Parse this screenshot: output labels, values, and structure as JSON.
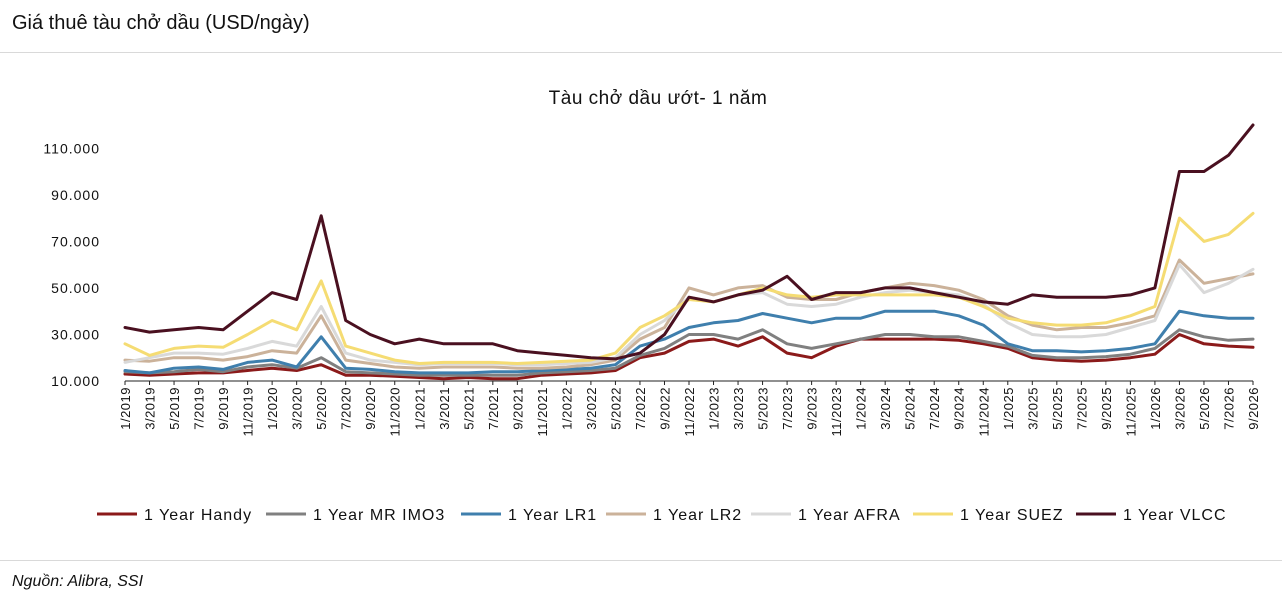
{
  "page": {
    "header": "Giá thuê tàu chở dầu (USD/ngày)",
    "source": "Nguồn: Alibra, SSI"
  },
  "chart_data": {
    "type": "line",
    "title": "Tàu chở dầu ướt- 1 năm",
    "xlabel": "",
    "ylabel": "",
    "ylim": [
      10000,
      120000
    ],
    "y_ticks": [
      10000,
      30000,
      50000,
      70000,
      90000,
      110000
    ],
    "y_tick_labels": [
      "10.000",
      "30.000",
      "50.000",
      "70.000",
      "90.000",
      "110.000"
    ],
    "x_tick_labels": [
      "1/2019",
      "3/2019",
      "5/2019",
      "7/2019",
      "9/2019",
      "11/2019",
      "1/2020",
      "3/2020",
      "5/2020",
      "7/2020",
      "9/2020",
      "11/2020",
      "1/2021",
      "3/2021",
      "5/2021",
      "7/2021",
      "9/2021",
      "11/2021",
      "1/2022",
      "3/2022",
      "5/2022",
      "7/2022",
      "9/2022",
      "11/2022",
      "1/2023",
      "3/2023",
      "5/2023",
      "7/2023",
      "9/2023",
      "11/2023",
      "1/2024",
      "3/2024",
      "5/2024",
      "7/2024",
      "9/2024",
      "11/2024",
      "1/2025",
      "3/2025",
      "5/2025",
      "7/2025",
      "9/2025",
      "11/2025",
      "1/2026",
      "3/2026",
      "5/2026",
      "7/2026",
      "9/2026"
    ],
    "grid": false,
    "legend_position": "bottom",
    "x": [
      "1/2019",
      "3/2019",
      "5/2019",
      "7/2019",
      "9/2019",
      "11/2019",
      "1/2020",
      "3/2020",
      "5/2020",
      "7/2020",
      "9/2020",
      "11/2020",
      "1/2021",
      "3/2021",
      "5/2021",
      "7/2021",
      "9/2021",
      "11/2021",
      "1/2022",
      "3/2022",
      "5/2022",
      "7/2022",
      "9/2022",
      "11/2022",
      "1/2023",
      "3/2023",
      "5/2023",
      "7/2023",
      "9/2023",
      "11/2023",
      "1/2024",
      "3/2024",
      "5/2024",
      "7/2024",
      "9/2024",
      "11/2024",
      "1/2025",
      "3/2025",
      "5/2025",
      "7/2025",
      "9/2025",
      "11/2025",
      "1/2026",
      "3/2026",
      "5/2026",
      "7/2026",
      "9/2026"
    ],
    "series": [
      {
        "name": "1 Year Handy",
        "color": "#8b1a1a",
        "values": [
          13000,
          12500,
          13000,
          13500,
          13500,
          14500,
          15500,
          14500,
          17000,
          12500,
          12500,
          12000,
          11500,
          11000,
          11500,
          11000,
          11000,
          12500,
          13000,
          13500,
          14500,
          20000,
          22000,
          27000,
          28000,
          25000,
          29000,
          22000,
          20000,
          25000,
          28000,
          28000,
          28000,
          28000,
          27500,
          26000,
          24000,
          20000,
          19000,
          18500,
          19000,
          20000,
          21500,
          30000,
          26000,
          25000,
          24500
        ]
      },
      {
        "name": "1 Year MR IMO3",
        "color": "#808080",
        "values": [
          14000,
          13500,
          14000,
          15000,
          14000,
          16000,
          17000,
          15500,
          20000,
          14000,
          13500,
          13000,
          12500,
          12500,
          12500,
          12500,
          12500,
          13500,
          14000,
          14500,
          15500,
          21000,
          24000,
          30000,
          30000,
          28000,
          32000,
          26000,
          24000,
          26000,
          28000,
          30000,
          30000,
          29000,
          29000,
          27000,
          25000,
          21000,
          20000,
          20000,
          20500,
          21500,
          24000,
          32000,
          29000,
          27500,
          28000
        ]
      },
      {
        "name": "1 Year LR1",
        "color": "#3f7fad",
        "values": [
          14500,
          13500,
          15500,
          16000,
          15000,
          18000,
          19000,
          16000,
          29000,
          15500,
          15000,
          14000,
          13500,
          13500,
          13500,
          14000,
          14000,
          14500,
          15000,
          15500,
          17000,
          25000,
          28000,
          33000,
          35000,
          36000,
          39000,
          37000,
          35000,
          37000,
          37000,
          40000,
          40000,
          40000,
          38000,
          34000,
          26000,
          23000,
          23000,
          22500,
          23000,
          24000,
          26000,
          40000,
          38000,
          37000,
          37000
        ]
      },
      {
        "name": "1 Year LR2",
        "color": "#cbb29a",
        "values": [
          19000,
          18500,
          20000,
          20000,
          19000,
          20500,
          23000,
          22000,
          38000,
          19000,
          17500,
          16000,
          15500,
          16000,
          16000,
          16000,
          15500,
          15500,
          16000,
          17000,
          19000,
          28000,
          33000,
          50000,
          47000,
          50000,
          51000,
          46000,
          45000,
          45000,
          48000,
          50000,
          52000,
          51000,
          49000,
          45000,
          38000,
          34000,
          32000,
          33000,
          33000,
          35000,
          38000,
          62000,
          52000,
          54000,
          56000
        ]
      },
      {
        "name": "1 Year AFRA",
        "color": "#d9d9d9",
        "values": [
          18000,
          20000,
          22000,
          22000,
          21500,
          24000,
          27000,
          25000,
          42000,
          22000,
          19000,
          18000,
          17000,
          17500,
          17500,
          17500,
          17000,
          17000,
          17500,
          18000,
          20000,
          30000,
          36000,
          46000,
          44000,
          47000,
          48000,
          43000,
          42000,
          43000,
          46000,
          48000,
          49000,
          48000,
          47000,
          43000,
          35000,
          30000,
          29000,
          29000,
          30000,
          33000,
          36000,
          60000,
          48000,
          52000,
          58000
        ]
      },
      {
        "name": "1 Year SUEZ",
        "color": "#f5dc73",
        "values": [
          26000,
          21000,
          24000,
          25000,
          24500,
          30000,
          36000,
          32000,
          53000,
          25000,
          22000,
          19000,
          17500,
          18000,
          18000,
          18000,
          17500,
          18000,
          18500,
          19000,
          22000,
          33000,
          38000,
          45000,
          44000,
          47000,
          50000,
          47000,
          46000,
          47000,
          47000,
          47000,
          47000,
          47000,
          46000,
          42000,
          37000,
          35000,
          34000,
          34000,
          35000,
          38000,
          42000,
          80000,
          70000,
          73000,
          82000
        ]
      },
      {
        "name": "1 Year VLCC",
        "color": "#4a1020",
        "values": [
          33000,
          31000,
          32000,
          33000,
          32000,
          40000,
          48000,
          45000,
          81000,
          36000,
          30000,
          26000,
          28000,
          26000,
          26000,
          26000,
          23000,
          22000,
          21000,
          20000,
          19500,
          22000,
          30000,
          46000,
          44000,
          47000,
          49000,
          55000,
          45000,
          48000,
          48000,
          50000,
          50000,
          48000,
          46000,
          44000,
          43000,
          47000,
          46000,
          46000,
          46000,
          47000,
          50000,
          100000,
          100000,
          107000,
          120000
        ]
      }
    ]
  }
}
